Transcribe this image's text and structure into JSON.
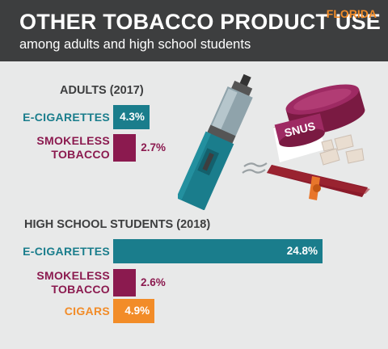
{
  "header": {
    "title": "OTHER TOBACCO PRODUCT USE",
    "subtitle": "among adults and high school students",
    "state": "FLORIDA"
  },
  "illustration": {
    "snus_label": "SNUS"
  },
  "colors": {
    "header_bg": "#3d3e3f",
    "background": "#e8e9e9",
    "e_cigarettes": "#1a7d8c",
    "smokeless_tobacco": "#8b1a4f",
    "cigars": "#f28c28"
  },
  "chart_data": [
    {
      "type": "bar",
      "orientation": "horizontal",
      "title": "ADULTS (2017)",
      "unit": "%",
      "categories": [
        "E-CIGARETTES",
        "SMOKELESS TOBACCO"
      ],
      "values": [
        4.3,
        2.7
      ],
      "value_labels": [
        "4.3%",
        "2.7%"
      ],
      "colors": [
        "#1a7d8c",
        "#8b1a4f"
      ],
      "grid": false,
      "legend": "none"
    },
    {
      "type": "bar",
      "orientation": "horizontal",
      "title": "HIGH SCHOOL STUDENTS (2018)",
      "unit": "%",
      "categories": [
        "E-CIGARETTES",
        "SMOKELESS TOBACCO",
        "CIGARS"
      ],
      "values": [
        24.8,
        2.6,
        4.9
      ],
      "value_labels": [
        "24.8%",
        "2.6%",
        "4.9%"
      ],
      "colors": [
        "#1a7d8c",
        "#8b1a4f",
        "#f28c28"
      ],
      "grid": false,
      "legend": "none"
    }
  ]
}
